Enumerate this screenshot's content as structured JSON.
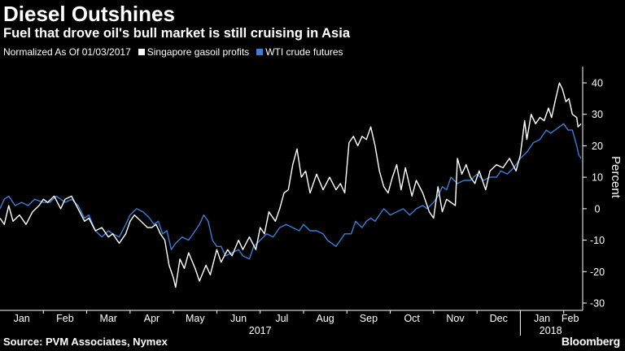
{
  "header": {
    "title": "Diesel Outshines",
    "subtitle": "Fuel that drove oil's bull market is still cruising in Asia"
  },
  "legend": {
    "normalized_label": "Normalized As Of 01/03/2017",
    "items": [
      {
        "label": "Singapore gasoil profits",
        "color": "#ffffff"
      },
      {
        "label": "WTI crude futures",
        "color": "#3b7dd8"
      }
    ]
  },
  "footer": {
    "source": "Source: PVM Associates, Nymex",
    "brand": "Bloomberg"
  },
  "chart_data": {
    "type": "line",
    "title": "Diesel Outshines",
    "subtitle": "Fuel that drove oil's bull market is still cruising in Asia",
    "xlabel": "",
    "ylabel": "Percent",
    "ylim": [
      -30,
      45
    ],
    "yticks": [
      40,
      30,
      20,
      10,
      0,
      -10,
      -20,
      -30
    ],
    "x_unit": "month index (0 = Jan 2017 start)",
    "xlim": [
      0,
      13.4
    ],
    "x_ticks": [
      {
        "label": "Jan",
        "x": 0.5
      },
      {
        "label": "Feb",
        "x": 1.5
      },
      {
        "label": "Mar",
        "x": 2.5
      },
      {
        "label": "Apr",
        "x": 3.5
      },
      {
        "label": "May",
        "x": 4.5
      },
      {
        "label": "Jun",
        "x": 5.5
      },
      {
        "label": "Jul",
        "x": 6.5
      },
      {
        "label": "Aug",
        "x": 7.5
      },
      {
        "label": "Sep",
        "x": 8.5
      },
      {
        "label": "Oct",
        "x": 9.5
      },
      {
        "label": "Nov",
        "x": 10.5
      },
      {
        "label": "Dec",
        "x": 11.5
      },
      {
        "label": "Jan",
        "x": 12.5
      },
      {
        "label": "Feb",
        "x": 13.15
      }
    ],
    "year_labels": [
      {
        "label": "2017",
        "x": 6.0
      },
      {
        "label": "2018",
        "x": 12.7
      }
    ],
    "year_divider_x": 12.0,
    "grid": false,
    "legend_position": "top-left",
    "series": [
      {
        "name": "Singapore gasoil profits",
        "color": "#ffffff",
        "points": [
          [
            0.0,
            -3
          ],
          [
            0.1,
            -5
          ],
          [
            0.2,
            1
          ],
          [
            0.3,
            -4
          ],
          [
            0.45,
            -2
          ],
          [
            0.6,
            -5
          ],
          [
            0.75,
            -1
          ],
          [
            0.9,
            1
          ],
          [
            1.0,
            3
          ],
          [
            1.1,
            2
          ],
          [
            1.25,
            4
          ],
          [
            1.4,
            0
          ],
          [
            1.5,
            3
          ],
          [
            1.65,
            4
          ],
          [
            1.8,
            0
          ],
          [
            1.95,
            -4
          ],
          [
            2.05,
            -3
          ],
          [
            2.2,
            -7
          ],
          [
            2.35,
            -6
          ],
          [
            2.5,
            -9
          ],
          [
            2.6,
            -8
          ],
          [
            2.75,
            -11
          ],
          [
            2.9,
            -8
          ],
          [
            3.0,
            -4
          ],
          [
            3.1,
            -2
          ],
          [
            3.25,
            -4
          ],
          [
            3.4,
            -6
          ],
          [
            3.5,
            -6
          ],
          [
            3.6,
            -5
          ],
          [
            3.7,
            -8
          ],
          [
            3.8,
            -10
          ],
          [
            3.9,
            -18
          ],
          [
            4.0,
            -22
          ],
          [
            4.05,
            -25
          ],
          [
            4.15,
            -16
          ],
          [
            4.25,
            -19
          ],
          [
            4.35,
            -14
          ],
          [
            4.5,
            -19
          ],
          [
            4.6,
            -23
          ],
          [
            4.75,
            -18
          ],
          [
            4.85,
            -21
          ],
          [
            5.0,
            -13
          ],
          [
            5.1,
            -17
          ],
          [
            5.25,
            -13
          ],
          [
            5.35,
            -15
          ],
          [
            5.5,
            -10
          ],
          [
            5.6,
            -13
          ],
          [
            5.75,
            -9
          ],
          [
            5.9,
            -13
          ],
          [
            6.0,
            -6
          ],
          [
            6.1,
            -8
          ],
          [
            6.2,
            -1
          ],
          [
            6.35,
            -4
          ],
          [
            6.45,
            0
          ],
          [
            6.55,
            5
          ],
          [
            6.65,
            6
          ],
          [
            6.75,
            14
          ],
          [
            6.85,
            19
          ],
          [
            6.95,
            10
          ],
          [
            7.05,
            12
          ],
          [
            7.15,
            5
          ],
          [
            7.3,
            11
          ],
          [
            7.45,
            6
          ],
          [
            7.6,
            10
          ],
          [
            7.75,
            6
          ],
          [
            7.85,
            8
          ],
          [
            7.95,
            5
          ],
          [
            8.05,
            21
          ],
          [
            8.15,
            23
          ],
          [
            8.25,
            20
          ],
          [
            8.35,
            23
          ],
          [
            8.45,
            22
          ],
          [
            8.55,
            26
          ],
          [
            8.65,
            20
          ],
          [
            8.75,
            12
          ],
          [
            8.85,
            7
          ],
          [
            8.95,
            5
          ],
          [
            9.05,
            10
          ],
          [
            9.15,
            14
          ],
          [
            9.25,
            6
          ],
          [
            9.35,
            13
          ],
          [
            9.5,
            4
          ],
          [
            9.6,
            9
          ],
          [
            9.75,
            5
          ],
          [
            9.9,
            -1
          ],
          [
            10.0,
            -3
          ],
          [
            10.1,
            7
          ],
          [
            10.2,
            -1
          ],
          [
            10.3,
            3
          ],
          [
            10.4,
            2
          ],
          [
            10.5,
            1
          ],
          [
            10.55,
            16
          ],
          [
            10.65,
            11
          ],
          [
            10.75,
            14
          ],
          [
            10.85,
            10
          ],
          [
            10.95,
            8
          ],
          [
            11.05,
            12
          ],
          [
            11.2,
            6
          ],
          [
            11.3,
            12
          ],
          [
            11.45,
            14
          ],
          [
            11.6,
            13
          ],
          [
            11.75,
            16
          ],
          [
            11.9,
            12
          ],
          [
            12.0,
            17
          ],
          [
            12.1,
            28
          ],
          [
            12.15,
            22
          ],
          [
            12.25,
            30
          ],
          [
            12.35,
            27
          ],
          [
            12.45,
            29
          ],
          [
            12.55,
            28
          ],
          [
            12.65,
            32
          ],
          [
            12.72,
            29
          ],
          [
            12.8,
            34
          ],
          [
            12.9,
            40
          ],
          [
            12.97,
            38
          ],
          [
            13.05,
            34
          ],
          [
            13.12,
            35
          ],
          [
            13.2,
            30
          ],
          [
            13.3,
            29
          ],
          [
            13.33,
            26
          ],
          [
            13.4,
            27
          ]
        ]
      },
      {
        "name": "WTI crude futures",
        "color": "#3b7dd8",
        "points": [
          [
            0.0,
            0
          ],
          [
            0.1,
            3
          ],
          [
            0.2,
            4
          ],
          [
            0.35,
            1
          ],
          [
            0.5,
            2
          ],
          [
            0.65,
            1
          ],
          [
            0.8,
            3
          ],
          [
            1.0,
            2
          ],
          [
            1.15,
            2
          ],
          [
            1.3,
            4
          ],
          [
            1.5,
            2
          ],
          [
            1.65,
            3
          ],
          [
            1.8,
            1
          ],
          [
            1.95,
            -3
          ],
          [
            2.05,
            -2
          ],
          [
            2.2,
            -7
          ],
          [
            2.35,
            -9
          ],
          [
            2.5,
            -7
          ],
          [
            2.6,
            -8
          ],
          [
            2.75,
            -9
          ],
          [
            2.9,
            -5
          ],
          [
            3.0,
            -2
          ],
          [
            3.15,
            0
          ],
          [
            3.3,
            -1
          ],
          [
            3.45,
            -3
          ],
          [
            3.55,
            -5
          ],
          [
            3.65,
            -4
          ],
          [
            3.75,
            -8
          ],
          [
            3.85,
            -7
          ],
          [
            3.95,
            -13
          ],
          [
            4.05,
            -11
          ],
          [
            4.2,
            -9
          ],
          [
            4.35,
            -10
          ],
          [
            4.5,
            -7
          ],
          [
            4.6,
            -5
          ],
          [
            4.7,
            -2
          ],
          [
            4.8,
            -4
          ],
          [
            4.9,
            -10
          ],
          [
            5.0,
            -12
          ],
          [
            5.1,
            -12
          ],
          [
            5.2,
            -15
          ],
          [
            5.35,
            -14
          ],
          [
            5.5,
            -13
          ],
          [
            5.6,
            -15
          ],
          [
            5.75,
            -16
          ],
          [
            5.85,
            -12
          ],
          [
            6.0,
            -10
          ],
          [
            6.15,
            -8
          ],
          [
            6.3,
            -9
          ],
          [
            6.45,
            -6
          ],
          [
            6.6,
            -5
          ],
          [
            6.75,
            -6
          ],
          [
            6.9,
            -7
          ],
          [
            7.0,
            -5
          ],
          [
            7.15,
            -7
          ],
          [
            7.3,
            -7
          ],
          [
            7.45,
            -8
          ],
          [
            7.55,
            -10
          ],
          [
            7.65,
            -11
          ],
          [
            7.75,
            -12
          ],
          [
            7.85,
            -10
          ],
          [
            7.95,
            -8
          ],
          [
            8.1,
            -8
          ],
          [
            8.2,
            -4
          ],
          [
            8.35,
            -6
          ],
          [
            8.45,
            -4
          ],
          [
            8.55,
            -3
          ],
          [
            8.65,
            -4
          ],
          [
            8.75,
            -2
          ],
          [
            8.85,
            0
          ],
          [
            9.0,
            -2
          ],
          [
            9.15,
            -1
          ],
          [
            9.3,
            0
          ],
          [
            9.45,
            -2
          ],
          [
            9.6,
            0
          ],
          [
            9.75,
            1
          ],
          [
            9.85,
            0
          ],
          [
            10.0,
            2
          ],
          [
            10.1,
            4
          ],
          [
            10.2,
            7
          ],
          [
            10.3,
            6
          ],
          [
            10.4,
            10
          ],
          [
            10.55,
            8
          ],
          [
            10.7,
            9
          ],
          [
            10.85,
            9
          ],
          [
            11.0,
            11
          ],
          [
            11.15,
            9
          ],
          [
            11.3,
            10
          ],
          [
            11.45,
            10
          ],
          [
            11.55,
            12
          ],
          [
            11.7,
            11
          ],
          [
            11.85,
            13
          ],
          [
            12.0,
            16
          ],
          [
            12.15,
            18
          ],
          [
            12.3,
            21
          ],
          [
            12.45,
            22
          ],
          [
            12.6,
            25
          ],
          [
            12.7,
            24
          ],
          [
            12.8,
            25
          ],
          [
            12.9,
            26
          ],
          [
            13.0,
            27
          ],
          [
            13.1,
            25
          ],
          [
            13.2,
            25
          ],
          [
            13.3,
            20
          ],
          [
            13.35,
            17
          ],
          [
            13.4,
            16
          ]
        ]
      }
    ]
  }
}
